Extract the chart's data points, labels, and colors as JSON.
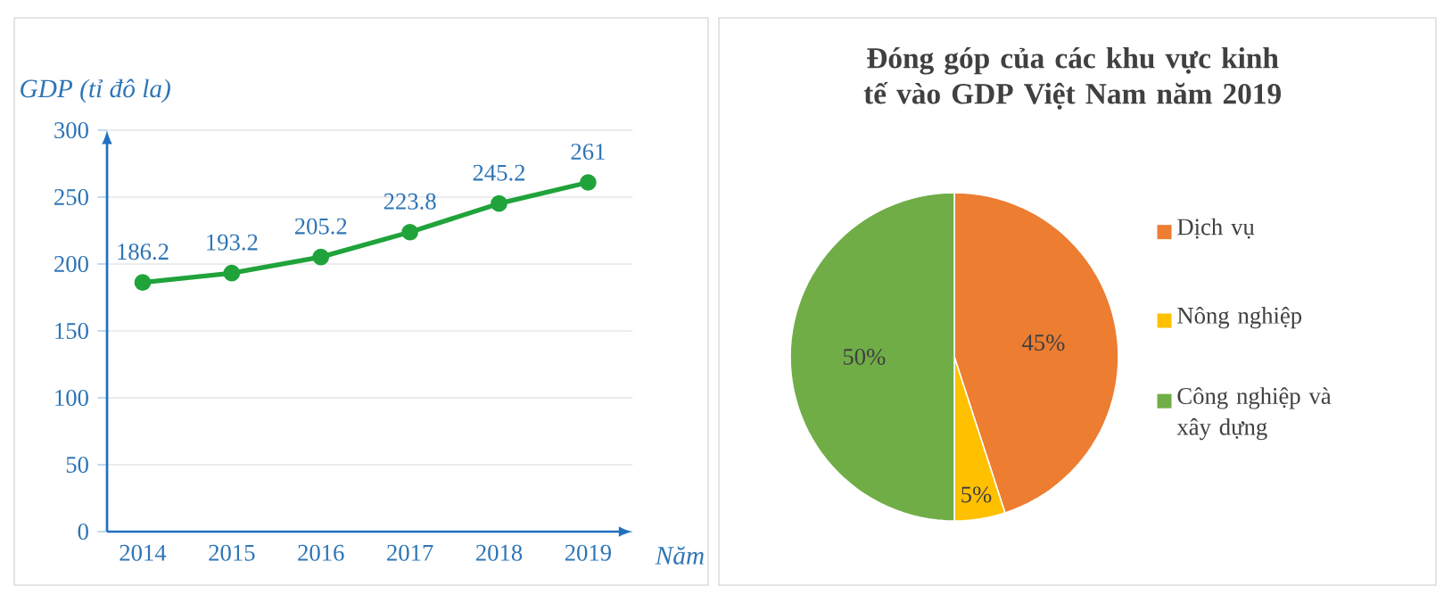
{
  "chart_data": [
    {
      "type": "line",
      "categories": [
        "2014",
        "2015",
        "2016",
        "2017",
        "2018",
        "2019"
      ],
      "values": [
        186.2,
        193.2,
        205.2,
        223.8,
        245.2,
        261
      ],
      "color": "#1fa33a",
      "ylim": [
        0,
        300
      ],
      "yticks": [
        0,
        50,
        100,
        150,
        200,
        250,
        300
      ],
      "grid": "y",
      "marker": "circle",
      "data_labels": true,
      "xlabel": "Năm",
      "ylabel": "GDP (tỉ đô la)"
    },
    {
      "type": "pie",
      "title": "Đóng góp của các khu vực kinh tế vào GDP Việt Nam năm 2019",
      "categories": [
        "Dịch vụ",
        "Nông nghiệp",
        "Công nghiệp và xây dựng"
      ],
      "values": [
        45,
        5,
        50
      ],
      "colors": [
        "#ed7d31",
        "#ffc000",
        "#70ad47"
      ],
      "value_labels": [
        "45%",
        "5%",
        "50%"
      ],
      "legend": "right"
    }
  ]
}
